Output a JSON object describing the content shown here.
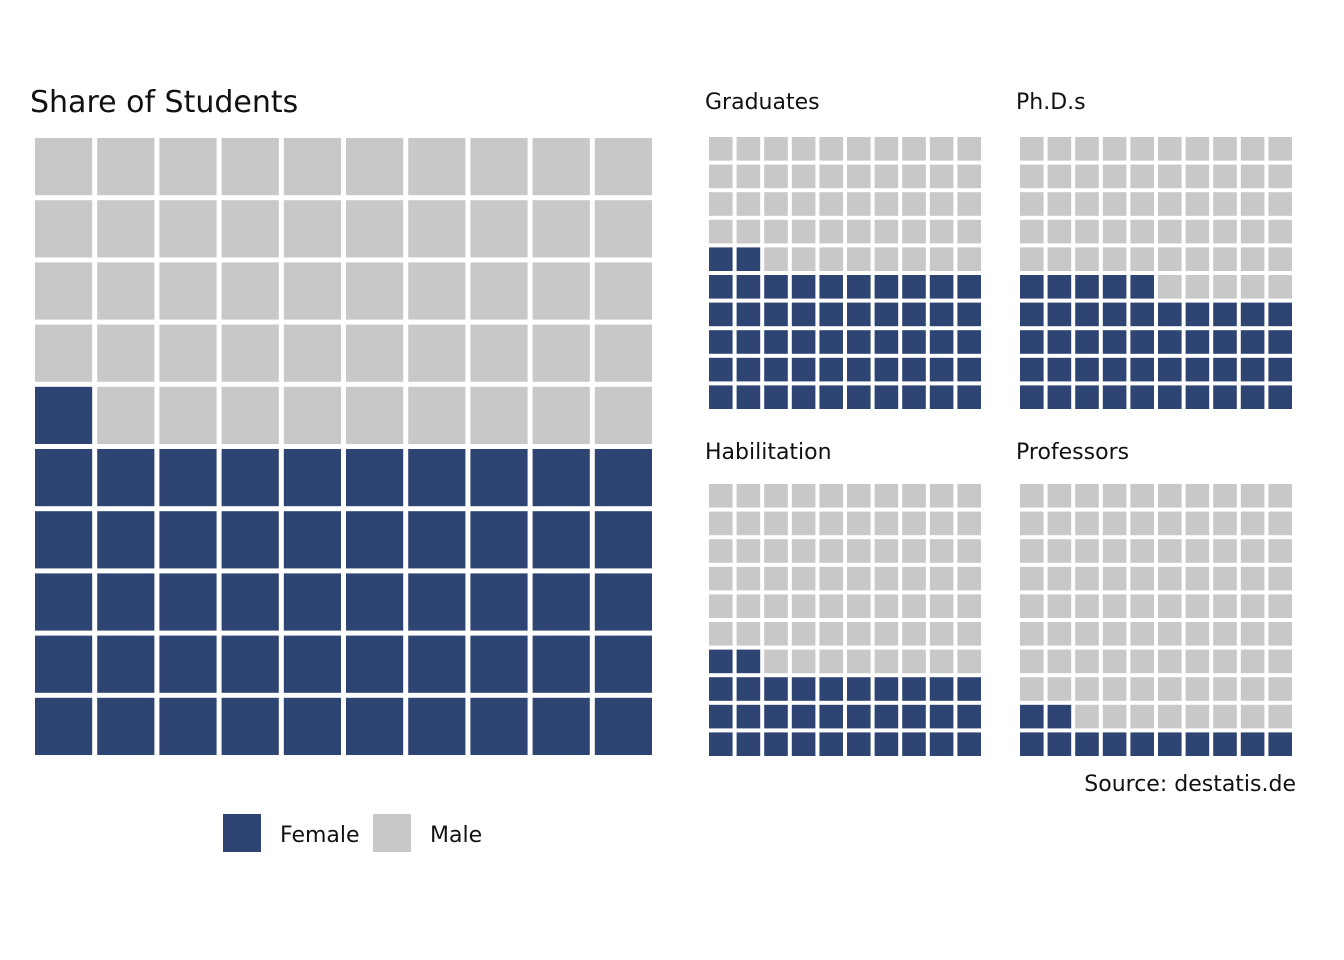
{
  "colors": {
    "female": "#2e4574",
    "male": "#c8c8c8",
    "background": "#ffffff"
  },
  "chart_data": [
    {
      "type": "waffle",
      "title": "Share of Students",
      "grid": "10x10",
      "series": [
        {
          "name": "Female",
          "value": 51
        },
        {
          "name": "Male",
          "value": 49
        }
      ]
    },
    {
      "type": "waffle",
      "title": "Graduates",
      "grid": "10x10",
      "series": [
        {
          "name": "Female",
          "value": 52
        },
        {
          "name": "Male",
          "value": 48
        }
      ]
    },
    {
      "type": "waffle",
      "title": "Ph.D.s",
      "grid": "10x10",
      "series": [
        {
          "name": "Female",
          "value": 45
        },
        {
          "name": "Male",
          "value": 55
        }
      ]
    },
    {
      "type": "waffle",
      "title": "Habilitation",
      "grid": "10x10",
      "series": [
        {
          "name": "Female",
          "value": 32
        },
        {
          "name": "Male",
          "value": 68
        }
      ]
    },
    {
      "type": "waffle",
      "title": "Professors",
      "grid": "10x10",
      "series": [
        {
          "name": "Female",
          "value": 12
        },
        {
          "name": "Male",
          "value": 88
        }
      ]
    }
  ],
  "legend": {
    "items": [
      {
        "label": "Female"
      },
      {
        "label": "Male"
      }
    ]
  },
  "source": "Source: destatis.de"
}
